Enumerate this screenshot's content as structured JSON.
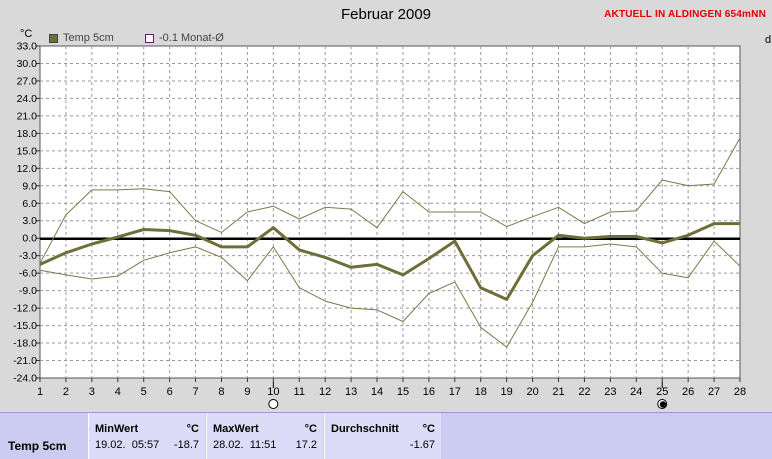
{
  "header": {
    "title": "Februar 2009",
    "station_tag": "AKTUELL IN ALDINGEN 654mNN",
    "unit": "°C",
    "right_edge_letter": "d"
  },
  "legend": [
    {
      "label": "Temp 5cm",
      "color": "#6e6e38"
    },
    {
      "label": "-0.1 Monat-Ø",
      "color": "#6a1a6a"
    }
  ],
  "chart_data": {
    "type": "line",
    "title": "Februar 2009",
    "ylabel": "°C",
    "ylim": [
      -24,
      33
    ],
    "ystep": 3,
    "y_ticks": [
      "33.0",
      "30.0",
      "27.0",
      "24.0",
      "21.0",
      "18.0",
      "15.0",
      "12.0",
      "9.0",
      "6.0",
      "3.0",
      "0.0",
      "-3.0",
      "-6.0",
      "-9.0",
      "-12.0",
      "-15.0",
      "-18.0",
      "-21.0",
      "-24.0"
    ],
    "x": [
      1,
      2,
      3,
      4,
      5,
      6,
      7,
      8,
      9,
      10,
      11,
      12,
      13,
      14,
      15,
      16,
      17,
      18,
      19,
      20,
      21,
      22,
      23,
      24,
      25,
      26,
      27,
      28
    ],
    "grid": true,
    "reference_line": {
      "name": "-0.1 Monat-Ø",
      "value": -0.1
    },
    "series": [
      {
        "name": "Temp 5cm",
        "role": "mean",
        "color": "#6e6e38",
        "values": [
          -4.5,
          -2.5,
          -1.0,
          0.2,
          1.5,
          1.3,
          0.5,
          -1.5,
          -1.5,
          1.8,
          -2.0,
          -3.3,
          -5.0,
          -4.5,
          -6.3,
          -3.5,
          -0.5,
          -8.5,
          -10.5,
          -3.0,
          0.5,
          0.0,
          0.3,
          0.3,
          -0.8,
          0.5,
          2.5,
          2.5
        ]
      },
      {
        "role": "max",
        "color": "#7a7a4a",
        "values": [
          -4.3,
          4.0,
          8.3,
          8.3,
          8.5,
          8.0,
          3.0,
          1.0,
          4.5,
          5.5,
          3.3,
          5.3,
          5.0,
          1.8,
          8.0,
          4.5,
          4.5,
          4.5,
          2.0,
          3.7,
          5.3,
          2.5,
          4.5,
          4.7,
          10.0,
          9.0,
          9.3,
          17.2
        ]
      },
      {
        "role": "min",
        "color": "#7a7a4a",
        "values": [
          -5.5,
          -6.3,
          -7.0,
          -6.5,
          -3.8,
          -2.5,
          -1.5,
          -3.3,
          -7.3,
          -1.5,
          -8.5,
          -10.8,
          -12.0,
          -12.3,
          -14.3,
          -9.5,
          -7.5,
          -15.3,
          -18.7,
          -11.0,
          -1.5,
          -1.5,
          -1.0,
          -1.5,
          -6.0,
          -6.8,
          -0.5,
          -4.8
        ]
      }
    ],
    "markers": [
      {
        "x": 10,
        "symbol": "open-circle"
      },
      {
        "x": 25,
        "symbol": "filled-circle"
      }
    ]
  },
  "stats": {
    "row_label": "Temp 5cm",
    "min": {
      "header": "MinWert",
      "unit": "°C",
      "when": "19.02.  05:57",
      "value": "-18.7"
    },
    "max": {
      "header": "MaxWert",
      "unit": "°C",
      "when": "28.02.  11:51",
      "value": "17.2"
    },
    "avg": {
      "header": "Durchschnitt",
      "unit": "°C",
      "value": "-1.67"
    }
  }
}
